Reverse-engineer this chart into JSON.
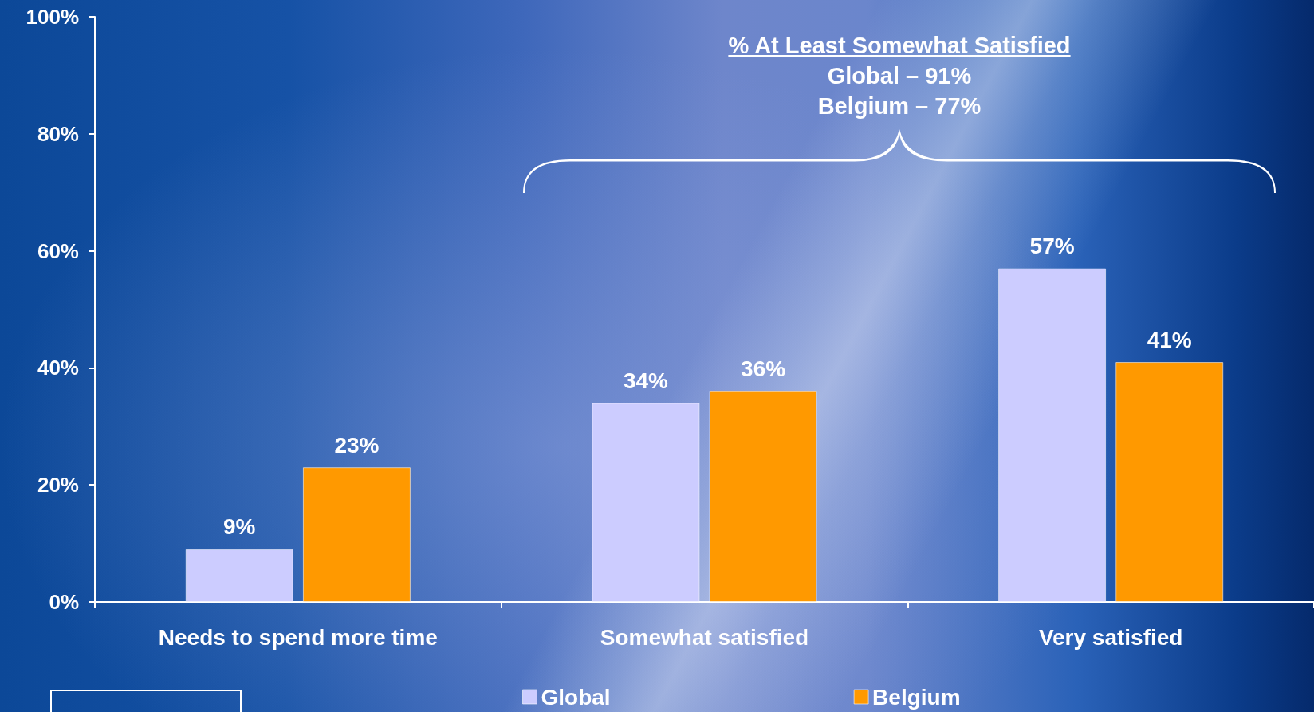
{
  "chart_data": {
    "type": "bar",
    "categories": [
      "Needs to spend more time",
      "Somewhat satisfied",
      "Very satisfied"
    ],
    "series": [
      {
        "name": "Global",
        "color": "#ccccff",
        "values": [
          9,
          34,
          57
        ],
        "value_labels": [
          "9%",
          "34%",
          "57%"
        ]
      },
      {
        "name": "Belgium",
        "color": "#ff9900",
        "values": [
          23,
          36,
          41
        ],
        "value_labels": [
          "23%",
          "36%",
          "41%"
        ]
      }
    ],
    "ylim": [
      0,
      100
    ],
    "yticks": [
      {
        "value": 0,
        "label": "0%"
      },
      {
        "value": 20,
        "label": "20%"
      },
      {
        "value": 40,
        "label": "40%"
      },
      {
        "value": 60,
        "label": "60%"
      },
      {
        "value": 80,
        "label": "80%"
      },
      {
        "value": 100,
        "label": "100%"
      }
    ],
    "legend": "bottom",
    "annotations": [
      "% At Least Somewhat Satisfied",
      "Global – 91%",
      "Belgium – 77%"
    ]
  }
}
